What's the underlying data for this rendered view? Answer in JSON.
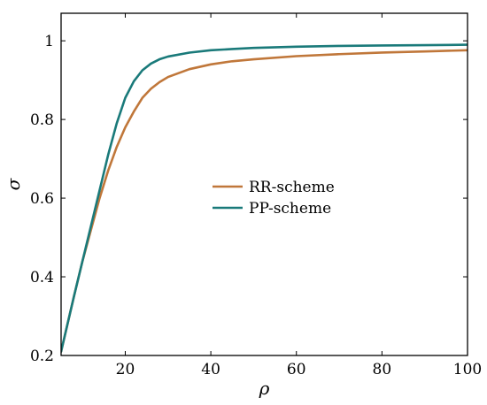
{
  "chart_data": {
    "type": "line",
    "title": "",
    "xlabel": "ρ",
    "ylabel": "σ",
    "xlim": [
      5,
      100
    ],
    "ylim": [
      0.2,
      1.07
    ],
    "grid": false,
    "legend_position": "center",
    "x_ticks": [
      20,
      40,
      60,
      80,
      100
    ],
    "x_tick_labels": [
      "20",
      "40",
      "60",
      "80",
      "100"
    ],
    "y_ticks": [
      0.2,
      0.4,
      0.6,
      0.8,
      1.0
    ],
    "y_tick_labels": [
      "0.2",
      "0.4",
      "0.6",
      "0.8",
      "1"
    ],
    "series": [
      {
        "name": "RR-scheme",
        "color": "#c0773a",
        "x": [
          5,
          8,
          10,
          12,
          14,
          16,
          18,
          20,
          22,
          24,
          26,
          28,
          30,
          35,
          40,
          45,
          50,
          60,
          70,
          80,
          90,
          100
        ],
        "y": [
          0.21,
          0.35,
          0.44,
          0.52,
          0.6,
          0.67,
          0.73,
          0.78,
          0.82,
          0.855,
          0.878,
          0.895,
          0.908,
          0.928,
          0.94,
          0.948,
          0.953,
          0.961,
          0.966,
          0.97,
          0.973,
          0.976
        ]
      },
      {
        "name": "PP-scheme",
        "color": "#1a7a7a",
        "x": [
          5,
          8,
          10,
          12,
          14,
          16,
          18,
          20,
          22,
          24,
          26,
          28,
          30,
          35,
          40,
          45,
          50,
          60,
          70,
          80,
          90,
          100
        ],
        "y": [
          0.21,
          0.35,
          0.44,
          0.53,
          0.62,
          0.71,
          0.79,
          0.855,
          0.897,
          0.925,
          0.942,
          0.953,
          0.96,
          0.97,
          0.976,
          0.979,
          0.982,
          0.985,
          0.987,
          0.988,
          0.989,
          0.99
        ]
      }
    ]
  }
}
